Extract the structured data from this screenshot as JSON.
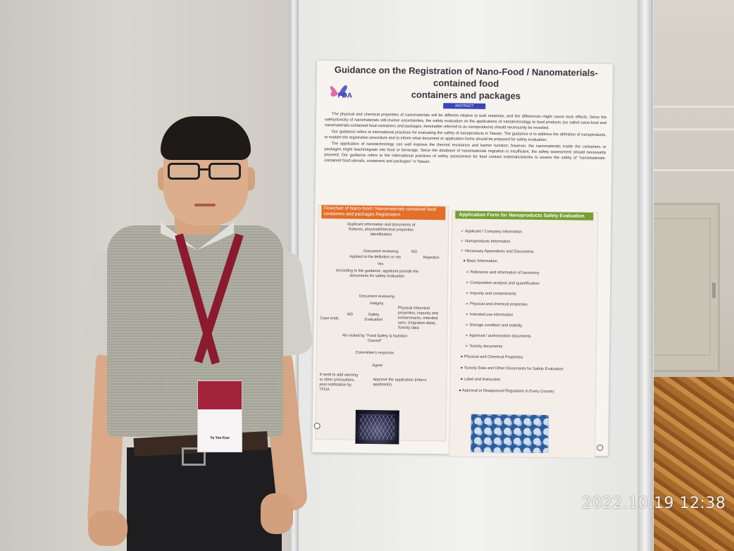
{
  "timestamp": "2022.10.19 12:38",
  "badge": {
    "name": "Yu Yen Kuo"
  },
  "poster": {
    "title_line1": "Guidance on the Registration of Nano-Food / Nanomaterials-contained food",
    "title_line2": "containers and packages",
    "logo_text": "FDA",
    "abstract_tag": "ABSTRACT",
    "paragraphs": [
      "The physical and chemical properties of nanomaterials will be different relative to bulk materials, and the differences might cause toxic effects. Since the safety/toxicity of nanomaterials still involve uncertainties, the safety evaluation on the applications of nanotechnology to food products (so called nano-food and nanomaterials-contained food containers and packages, hereinafter referred to as nanoproducts) should necessarily be revisited.",
      "Our guidance refers to international practices for evaluating the safety of nanoproducts in Taiwan. The guidance is to address the definition of nanoproducts, to explain the registration procedure and to inform what document or application forms should be prepared for safety evaluation.",
      "The application of nanotechnology can well improve the thermal resistance and barrier function; however, the nanomaterials inside the containers or packages might leach/migrate into food or beverage. Since the database of nanomaterials migration is insufficient, the safety assessment should necessarily proceed. Our guidance refers to the international practices of safety assessment for food contact materials/articles to assess the safety of \"nanomaterials-contained food utensils, containers and packages\" in Taiwan."
    ],
    "flowchart_heading": "Flowchart of Nano-food / Nanomaterials-contained food containers and packages Registration",
    "flowchart": {
      "step1": "Applicant information and documents of features, physical/chemical properties identification",
      "step2": "Document reviewing",
      "step3": "Applied to the definition or not",
      "no_label": "NO",
      "rejection": "Rejection",
      "yes_label": "Yes",
      "step4": "According to the guidance, applicant provide the documents for safety evaluation",
      "step5": "Document reviewing",
      "integrity": "Integrity",
      "case_ends": "Case ends",
      "no_label2": "NO",
      "safety_eval": "Safety Evaluation",
      "side_note": "Physical /chemical properties, impurity and contaminants, intended uses, (migration data), Toxicity data",
      "revisited": "Re-visited by \"Food Safety & Nutrition Council\"",
      "committee": "Committee's response",
      "agree": "Agree",
      "if_need": "If need to add warning or other precautions, post notification by TFDA",
      "approve": "Approve the application (inform applicants)"
    },
    "form_heading": "Application Form for Nanoproducts Safety Evaluation",
    "form_items": [
      "Applicant / Company Information",
      "Nanoproducts Information",
      "Necessary Appendixes and Documents",
      "Basic Information",
      "Reference and information of taxonomy",
      "Composition analysis and quantification",
      "Impurity and contaminants",
      "Physical and chemical properties",
      "Intended use information",
      "Storage condition and stability",
      "Approval / authorization documents",
      "Toxicity documents",
      "Physical and Chemical Properties",
      "Toxicity Data and Other Documents for Safety Evaluation",
      "Label and Instruction",
      "Approval or Disapproval Regulation in Every Country"
    ]
  }
}
